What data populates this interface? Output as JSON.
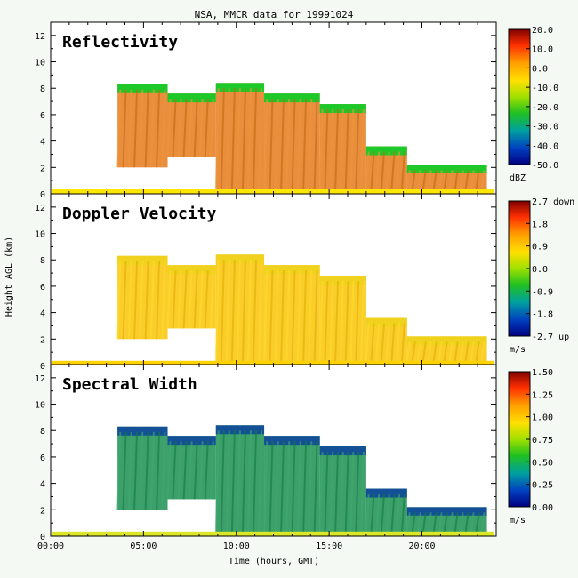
{
  "chart_data": {
    "type": "heatmap",
    "title": "NSA, MMCR data for 19991024",
    "xlabel": "Time (hours, GMT)",
    "ylabel": "Height AGL (km)",
    "xlim": [
      0,
      24
    ],
    "ylim": [
      0,
      13
    ],
    "x_ticks": [
      "00:00",
      "05:00",
      "10:00",
      "15:00",
      "20:00"
    ],
    "x_tick_values": [
      0,
      5,
      10,
      15,
      20
    ],
    "y_ticks": [
      "0",
      "2",
      "4",
      "6",
      "8",
      "10",
      "12"
    ],
    "y_tick_values": [
      0,
      2,
      4,
      6,
      8,
      10,
      12
    ],
    "grid": false,
    "panels": [
      {
        "name": "Reflectivity",
        "units": "dBZ",
        "colorbar_ticks": [
          "20.0",
          "10.0",
          "0.0",
          "-10.0",
          "-20.0",
          "-30.0",
          "-40.0",
          "-50.0"
        ],
        "range": [
          -50,
          20
        ]
      },
      {
        "name": "Doppler Velocity",
        "units": "m/s",
        "colorbar_ticks": [
          "2.7 down",
          "1.8",
          "0.9",
          "0.0",
          "-0.9",
          "-1.8",
          "-2.7 up"
        ],
        "range": [
          -2.7,
          2.7
        ]
      },
      {
        "name": "Spectral Width",
        "units": "m/s",
        "colorbar_ticks": [
          "1.50",
          "1.25",
          "1.00",
          "0.75",
          "0.50",
          "0.25",
          "0.00"
        ],
        "range": [
          0,
          1.5
        ]
      }
    ],
    "cloud_regions": [
      {
        "x0": 3.6,
        "x1": 6.3,
        "top": 8.3,
        "base": 2.0
      },
      {
        "x0": 6.3,
        "x1": 8.9,
        "top": 7.6,
        "base": 2.8
      },
      {
        "x0": 8.9,
        "x1": 11.5,
        "top": 8.4,
        "base": 0.3
      },
      {
        "x0": 11.5,
        "x1": 14.5,
        "top": 7.6,
        "base": 0.0
      },
      {
        "x0": 14.5,
        "x1": 17.0,
        "top": 6.8,
        "base": 0.0
      },
      {
        "x0": 17.0,
        "x1": 19.2,
        "top": 3.6,
        "base": 0.3
      },
      {
        "x0": 19.2,
        "x1": 23.5,
        "top": 2.2,
        "base": 0.3
      }
    ]
  }
}
